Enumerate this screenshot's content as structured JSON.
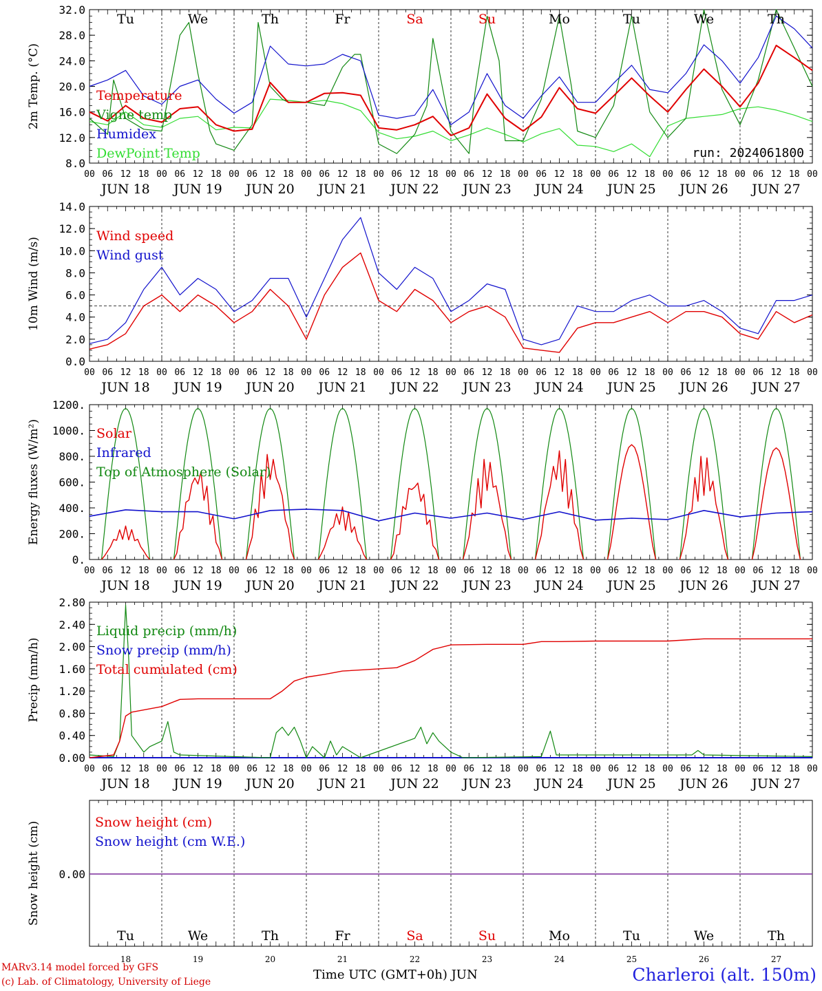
{
  "meta": {
    "run_label": "run: 2024061800",
    "model_line": "MARv3.14 model forced by GFS",
    "lab_line": "(c) Lab. of Climatology, University of Liege",
    "xaxis_title": "Time UTC (GMT+0h) JUN",
    "location": "Charleroi (alt. 150m)"
  },
  "colors": {
    "red": "#e00000",
    "green": "#118811",
    "blue": "#1111cc",
    "lightgreen": "#33dd33",
    "weekend": "#e00000"
  },
  "days": [
    {
      "abbr": "Tu",
      "date": "JUN 18",
      "num": "18",
      "weekend": false
    },
    {
      "abbr": "We",
      "date": "JUN 19",
      "num": "19",
      "weekend": false
    },
    {
      "abbr": "Th",
      "date": "JUN 20",
      "num": "20",
      "weekend": false
    },
    {
      "abbr": "Fr",
      "date": "JUN 21",
      "num": "21",
      "weekend": false
    },
    {
      "abbr": "Sa",
      "date": "JUN 22",
      "num": "22",
      "weekend": true
    },
    {
      "abbr": "Su",
      "date": "JUN 23",
      "num": "23",
      "weekend": true
    },
    {
      "abbr": "Mo",
      "date": "JUN 24",
      "num": "24",
      "weekend": false
    },
    {
      "abbr": "Tu",
      "date": "JUN 25",
      "num": "25",
      "weekend": false
    },
    {
      "abbr": "We",
      "date": "JUN 26",
      "num": "26",
      "weekend": false
    },
    {
      "abbr": "Th",
      "date": "JUN 27",
      "num": "27",
      "weekend": false
    }
  ],
  "hour_labels": [
    "00",
    "06",
    "12",
    "18"
  ],
  "chart_data": [
    {
      "type": "line",
      "ylabel": "2m Temp. (°C)",
      "ylim": [
        8,
        32
      ],
      "yticks": [
        8,
        12,
        16,
        20,
        24,
        28,
        32
      ],
      "ytick_labels": [
        "8.0",
        "12.0",
        "16.0",
        "20.0",
        "24.0",
        "28.0",
        "32.0"
      ],
      "x_unit": "hours since JUN 18 00 UTC",
      "series": [
        {
          "name": "Temperature",
          "color": "#e00000",
          "x": [
            0,
            6,
            12,
            18,
            24,
            30,
            36,
            42,
            48,
            54,
            60,
            66,
            72,
            78,
            84,
            90,
            96,
            102,
            108,
            114,
            120,
            126,
            132,
            138,
            144,
            150,
            156,
            162,
            168,
            174,
            180,
            186,
            192,
            198,
            204,
            210,
            216,
            222,
            228,
            234,
            240
          ],
          "y": [
            16,
            14.6,
            17,
            15,
            14.4,
            16.5,
            16.8,
            14,
            13,
            13.3,
            20.6,
            17.5,
            17.5,
            18.9,
            19,
            18.6,
            13.5,
            13.2,
            14,
            15.3,
            12.3,
            13.5,
            18.8,
            15,
            13,
            15.2,
            19.8,
            16.5,
            15.8,
            18.5,
            21.3,
            18.5,
            16,
            19.5,
            22.7,
            20,
            16.8,
            20.5,
            26.4,
            24.5,
            22.5
          ]
        },
        {
          "name": "Vigne temp",
          "color": "#118811",
          "x": [
            0,
            6,
            8,
            12,
            18,
            24,
            30,
            33,
            36,
            40,
            42,
            48,
            54,
            56,
            60,
            64,
            66,
            72,
            78,
            84,
            88,
            90,
            96,
            102,
            108,
            112,
            114,
            120,
            126,
            128,
            132,
            136,
            138,
            144,
            150,
            156,
            160,
            162,
            168,
            174,
            180,
            186,
            192,
            198,
            204,
            210,
            216,
            222,
            228,
            234,
            240
          ],
          "y": [
            15,
            12.5,
            21,
            15,
            13.3,
            13,
            28,
            30,
            22,
            13,
            11,
            10,
            14,
            30,
            20,
            18,
            17.5,
            17.5,
            17,
            23,
            25,
            25,
            11,
            9.5,
            12.5,
            17,
            27.5,
            13,
            9.5,
            19,
            31,
            24,
            11.5,
            11.5,
            18,
            31,
            20,
            13,
            12,
            17,
            31,
            16,
            12,
            15,
            32,
            19.5,
            14,
            21,
            32,
            26,
            20
          ]
        },
        {
          "name": "Humidex",
          "color": "#1111cc",
          "x": [
            0,
            6,
            12,
            18,
            24,
            30,
            36,
            42,
            48,
            54,
            60,
            66,
            72,
            78,
            84,
            90,
            96,
            102,
            108,
            114,
            120,
            126,
            132,
            138,
            144,
            150,
            156,
            162,
            168,
            174,
            180,
            186,
            192,
            198,
            204,
            210,
            216,
            222,
            228,
            234,
            240
          ],
          "y": [
            20,
            21,
            22.5,
            18.5,
            17.2,
            20,
            21,
            18,
            15.8,
            17.5,
            26.3,
            23.5,
            23.2,
            23.5,
            25,
            24,
            15.5,
            15,
            15.5,
            19.5,
            14,
            16,
            22,
            17,
            15,
            18.5,
            21.5,
            17.5,
            17.5,
            20.5,
            23.3,
            19.5,
            19,
            22,
            26.5,
            24,
            20.5,
            24.5,
            31,
            29,
            26
          ]
        },
        {
          "name": "DewPoint Temp",
          "color": "#33dd33",
          "x": [
            0,
            6,
            12,
            18,
            24,
            30,
            36,
            42,
            48,
            54,
            60,
            66,
            72,
            78,
            84,
            90,
            96,
            102,
            108,
            114,
            120,
            126,
            132,
            138,
            144,
            150,
            156,
            162,
            168,
            174,
            180,
            186,
            192,
            198,
            204,
            210,
            216,
            222,
            228,
            234,
            240
          ],
          "y": [
            14.5,
            14,
            16,
            14,
            13.6,
            15,
            15.3,
            13.2,
            13.6,
            13.5,
            18,
            17.8,
            17.5,
            17.8,
            17.3,
            16.2,
            12.8,
            11.8,
            12.2,
            13,
            11.5,
            12.4,
            13.5,
            12.5,
            11.3,
            12.6,
            13.4,
            10.8,
            10.6,
            9.8,
            11,
            9,
            13.8,
            15,
            15.3,
            15.6,
            16.5,
            16.8,
            16.3,
            15.5,
            14.5
          ]
        }
      ]
    },
    {
      "type": "line",
      "ylabel": "10m Wind (m/s)",
      "ylim": [
        0,
        14
      ],
      "yticks": [
        0,
        2,
        4,
        6,
        8,
        10,
        12,
        14
      ],
      "ytick_labels": [
        "0.0",
        "2.0",
        "4.0",
        "6.0",
        "8.0",
        "10.0",
        "12.0",
        "14.0"
      ],
      "reference_line": 5,
      "series": [
        {
          "name": "Wind speed",
          "color": "#e00000",
          "x": [
            0,
            6,
            12,
            18,
            24,
            30,
            36,
            42,
            48,
            54,
            60,
            66,
            72,
            78,
            84,
            90,
            96,
            102,
            108,
            114,
            120,
            126,
            132,
            138,
            144,
            150,
            156,
            162,
            168,
            174,
            180,
            186,
            192,
            198,
            204,
            210,
            216,
            222,
            228,
            234,
            240
          ],
          "y": [
            1.1,
            1.5,
            2.5,
            5,
            6,
            4.5,
            6,
            5,
            3.5,
            4.5,
            6.5,
            5,
            2,
            6,
            8.5,
            9.8,
            5.5,
            4.5,
            6.5,
            5.5,
            3.5,
            4.5,
            5,
            4,
            1.2,
            1,
            0.8,
            3,
            3.5,
            3.5,
            4,
            4.5,
            3.5,
            4.5,
            4.5,
            4,
            2.5,
            2,
            4.5,
            3.5,
            4.2
          ]
        },
        {
          "name": "Wind gust",
          "color": "#1111cc",
          "x": [
            0,
            6,
            12,
            18,
            24,
            30,
            36,
            42,
            48,
            54,
            60,
            66,
            72,
            78,
            84,
            90,
            96,
            102,
            108,
            114,
            120,
            126,
            132,
            138,
            144,
            150,
            156,
            162,
            168,
            174,
            180,
            186,
            192,
            198,
            204,
            210,
            216,
            222,
            228,
            234,
            240
          ],
          "y": [
            1.6,
            2,
            3.5,
            6.5,
            8.5,
            6,
            7.5,
            6.5,
            4.5,
            5.5,
            7.5,
            7.5,
            4,
            7.5,
            11,
            13,
            8,
            6.5,
            8.5,
            7.5,
            4.5,
            5.5,
            7,
            6.5,
            2,
            1.5,
            2,
            5,
            4.5,
            4.5,
            5.5,
            6,
            5,
            5,
            5.5,
            4.5,
            3,
            2.5,
            5.5,
            5.5,
            6
          ]
        }
      ]
    },
    {
      "type": "line",
      "ylabel": "Energy fluxes (W/m²)",
      "ylim": [
        0,
        1200
      ],
      "yticks": [
        0,
        200,
        400,
        600,
        800,
        1000,
        1200
      ],
      "ytick_labels": [
        "0.",
        "200.",
        "400.",
        "600.",
        "800.",
        "1000.",
        "1200."
      ],
      "series": [
        {
          "name": "Solar",
          "color": "#e00000",
          "peaks": [
            260,
            730,
            850,
            410,
            660,
            800,
            860,
            890,
            820,
            865
          ]
        },
        {
          "name": "Infrared",
          "color": "#1111cc",
          "x": [
            0,
            12,
            24,
            36,
            48,
            60,
            72,
            84,
            96,
            108,
            120,
            132,
            144,
            156,
            168,
            180,
            192,
            204,
            216,
            228,
            240
          ],
          "y": [
            335,
            385,
            370,
            370,
            315,
            380,
            390,
            380,
            300,
            360,
            320,
            360,
            310,
            370,
            305,
            320,
            310,
            380,
            330,
            360,
            370
          ]
        },
        {
          "name": "Top of Atmosphere (Solar)",
          "color": "#118811",
          "peak": 1170,
          "day_start_hour": 4,
          "day_end_hour": 20
        }
      ]
    },
    {
      "type": "line",
      "ylabel": "Precip (mm/h)",
      "ylim": [
        0,
        2.8
      ],
      "yticks": [
        0,
        0.4,
        0.8,
        1.2,
        1.6,
        2.0,
        2.4,
        2.8
      ],
      "ytick_labels": [
        "0.00",
        "0.40",
        "0.80",
        "1.20",
        "1.60",
        "2.00",
        "2.40",
        "2.80"
      ],
      "series": [
        {
          "name": "Liquid precip (mm/h)",
          "color": "#118811",
          "x": [
            0,
            8,
            10,
            11,
            12,
            13,
            14,
            18,
            20,
            24,
            26,
            28,
            30,
            60,
            62,
            64,
            66,
            68,
            70,
            72,
            74,
            78,
            80,
            82,
            84,
            90,
            108,
            110,
            112,
            114,
            116,
            118,
            120,
            124,
            150,
            153,
            155,
            200,
            202,
            204,
            240
          ],
          "y": [
            0.05,
            0.02,
            0.3,
            1.5,
            2.75,
            1.8,
            0.4,
            0.1,
            0.2,
            0.3,
            0.65,
            0.1,
            0.05,
            0,
            0.45,
            0.55,
            0.4,
            0.55,
            0.3,
            0,
            0.2,
            0,
            0.3,
            0.05,
            0.2,
            0,
            0.35,
            0.55,
            0.25,
            0.45,
            0.3,
            0.2,
            0.1,
            0,
            0.02,
            0.48,
            0.05,
            0.05,
            0.13,
            0.05,
            0.02
          ]
        },
        {
          "name": "Snow precip (mm/h)",
          "color": "#1111cc",
          "x": [
            0,
            240
          ],
          "y": [
            0,
            0
          ]
        },
        {
          "name": "Total cumulated (cm)",
          "color": "#e00000",
          "x": [
            0,
            8,
            10,
            12,
            14,
            18,
            24,
            30,
            36,
            48,
            60,
            64,
            68,
            72,
            78,
            84,
            96,
            102,
            108,
            114,
            120,
            132,
            144,
            150,
            156,
            168,
            192,
            204,
            216,
            240
          ],
          "y": [
            0,
            0.05,
            0.3,
            0.75,
            0.82,
            0.86,
            0.92,
            1.05,
            1.06,
            1.06,
            1.06,
            1.2,
            1.38,
            1.45,
            1.5,
            1.56,
            1.6,
            1.62,
            1.75,
            1.95,
            2.03,
            2.04,
            2.04,
            2.09,
            2.09,
            2.1,
            2.1,
            2.14,
            2.14,
            2.14
          ]
        }
      ]
    },
    {
      "type": "line",
      "ylabel": "Snow height (cm)",
      "ytick_labels": [
        "0.00"
      ],
      "series": [
        {
          "name": "Snow height (cm)",
          "color": "#e00000",
          "x": [
            0,
            240
          ],
          "y": [
            0,
            0
          ]
        },
        {
          "name": "Snow height (cm W.E.)",
          "color": "#1111cc",
          "x": [
            0,
            240
          ],
          "y": [
            0,
            0
          ]
        }
      ]
    }
  ]
}
